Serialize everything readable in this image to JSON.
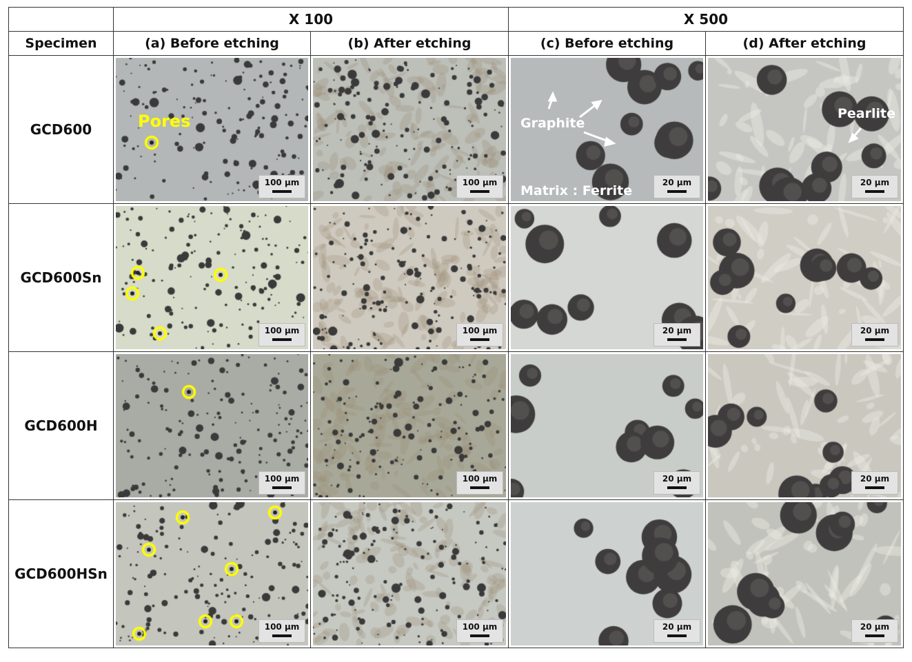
{
  "header": {
    "specimen": "Specimen",
    "groups": [
      "X 100",
      "X 500"
    ],
    "columns": [
      "(a) Before etching",
      "(b) After etching",
      "(c) Before etching",
      "(d) After etching"
    ]
  },
  "rows": [
    {
      "name": "GCD600"
    },
    {
      "name": "GCD600Sn"
    },
    {
      "name": "GCD600H"
    },
    {
      "name": "GCD600HSn"
    }
  ],
  "scale_bars": {
    "x100": "100 µm",
    "x500": "20 µm"
  },
  "annotations": {
    "pores": "Pores",
    "graphite": "Graphite",
    "matrix": "Matrix : Ferrite",
    "pearlite": "Pearlite"
  },
  "colors": {
    "pore_marker": "#ffff00",
    "graphite": "#3a3a3a"
  }
}
